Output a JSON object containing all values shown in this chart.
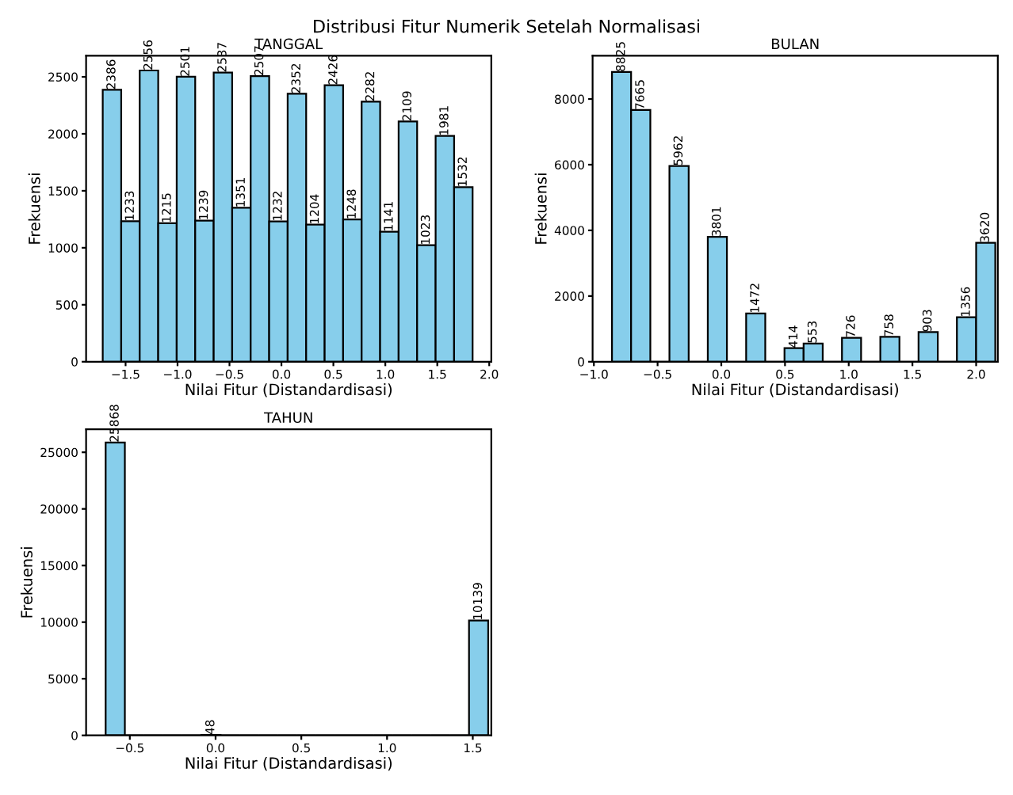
{
  "chart_data": [
    {
      "type": "histogram",
      "annotations": [
        "Distribusi Fitur Numerik Setelah Normalisasi"
      ],
      "title": "TANGGAL",
      "xlabel": "Nilai Fitur (Distandardisasi)",
      "ylabel": "Frekuensi",
      "color": "#87ceeb",
      "bins": [
        -1.72,
        -1.542,
        -1.364,
        -1.186,
        -1.008,
        -0.83,
        -0.652,
        -0.474,
        -0.296,
        -0.118,
        0.06,
        0.238,
        0.416,
        0.594,
        0.772,
        0.95,
        1.128,
        1.306,
        1.484,
        1.662,
        1.84
      ],
      "values": [
        2386,
        1233,
        2556,
        1215,
        2501,
        1239,
        2537,
        1351,
        2507,
        1232,
        2352,
        1204,
        2426,
        1248,
        2282,
        1141,
        2109,
        1023,
        1981,
        1532
      ],
      "value_labels": [
        "2386",
        "1233",
        "2556",
        "1215",
        "2501",
        "1239",
        "2537",
        "1351",
        "2507",
        "1232",
        "2352",
        "1204",
        "2426",
        "1248",
        "2282",
        "1141",
        "2109",
        "1023",
        "1981",
        "1532"
      ],
      "xlim": [
        -1.88,
        2.02
      ],
      "xticks": [
        {
          "value": -1.5,
          "label": "−1.5"
        },
        {
          "value": -1.0,
          "label": "−1.0"
        },
        {
          "value": -0.5,
          "label": "−0.5"
        },
        {
          "value": 0.0,
          "label": "0.0"
        },
        {
          "value": 0.5,
          "label": "0.5"
        },
        {
          "value": 1.0,
          "label": "1.0"
        },
        {
          "value": 1.5,
          "label": "1.5"
        },
        {
          "value": 2.0,
          "label": "2.0"
        }
      ],
      "ylim": [
        0,
        2686
      ],
      "yticks": [
        0,
        500,
        1000,
        1500,
        2000,
        2500
      ]
    },
    {
      "type": "histogram",
      "title": "BULAN",
      "xlabel": "Nilai Fitur (Distandardisasi)",
      "ylabel": "Frekuensi",
      "color": "#87ceeb",
      "bins": [
        -0.858,
        -0.708,
        -0.557,
        -0.407,
        -0.256,
        -0.106,
        0.044,
        0.195,
        0.345,
        0.496,
        0.646,
        0.796,
        0.947,
        1.097,
        1.248,
        1.398,
        1.548,
        1.699,
        1.849,
        2.0,
        2.15
      ],
      "values": [
        8825,
        7665,
        0,
        5962,
        0,
        3801,
        0,
        1472,
        0,
        414,
        553,
        0,
        726,
        0,
        758,
        0,
        903,
        0,
        1356,
        3620
      ],
      "value_labels": [
        "8825",
        "7665",
        null,
        "5962",
        null,
        "3801",
        null,
        "1472",
        null,
        "414",
        "553",
        null,
        "726",
        null,
        "758",
        null,
        "903",
        null,
        "1356",
        "3620"
      ],
      "xlim": [
        -1.01,
        2.17
      ],
      "xticks": [
        {
          "value": -1.0,
          "label": "−1.0"
        },
        {
          "value": -0.5,
          "label": "−0.5"
        },
        {
          "value": 0.0,
          "label": "0.0"
        },
        {
          "value": 0.5,
          "label": "0.5"
        },
        {
          "value": 1.0,
          "label": "1.0"
        },
        {
          "value": 1.5,
          "label": "1.5"
        },
        {
          "value": 2.0,
          "label": "2.0"
        }
      ],
      "ylim": [
        0,
        9320
      ],
      "yticks": [
        0,
        2000,
        4000,
        6000,
        8000
      ]
    },
    {
      "type": "histogram",
      "title": "TAHUN",
      "xlabel": "Nilai Fitur (Distandardisasi)",
      "ylabel": "Frekuensi",
      "color": "#87ceeb",
      "bins": [
        -0.641,
        -0.529,
        -0.418,
        -0.306,
        -0.195,
        -0.083,
        0.029,
        0.14,
        0.252,
        0.363,
        0.475,
        0.586,
        0.698,
        0.809,
        0.921,
        1.032,
        1.144,
        1.255,
        1.367,
        1.478,
        1.59
      ],
      "values": [
        25868,
        0,
        0,
        0,
        0,
        48,
        0,
        0,
        0,
        0,
        0,
        0,
        0,
        0,
        0,
        0,
        0,
        0,
        0,
        10139
      ],
      "value_labels": [
        "25868",
        null,
        null,
        null,
        null,
        "48",
        null,
        null,
        null,
        null,
        null,
        null,
        null,
        null,
        null,
        null,
        null,
        null,
        null,
        "10139"
      ],
      "xlim": [
        -0.755,
        1.608
      ],
      "xticks": [
        {
          "value": -0.5,
          "label": "−0.5"
        },
        {
          "value": 0.0,
          "label": "0.0"
        },
        {
          "value": 0.5,
          "label": "0.5"
        },
        {
          "value": 1.0,
          "label": "1.0"
        },
        {
          "value": 1.5,
          "label": "1.5"
        }
      ],
      "ylim": [
        0,
        27030
      ],
      "yticks": [
        0,
        5000,
        10000,
        15000,
        20000,
        25000
      ]
    }
  ]
}
